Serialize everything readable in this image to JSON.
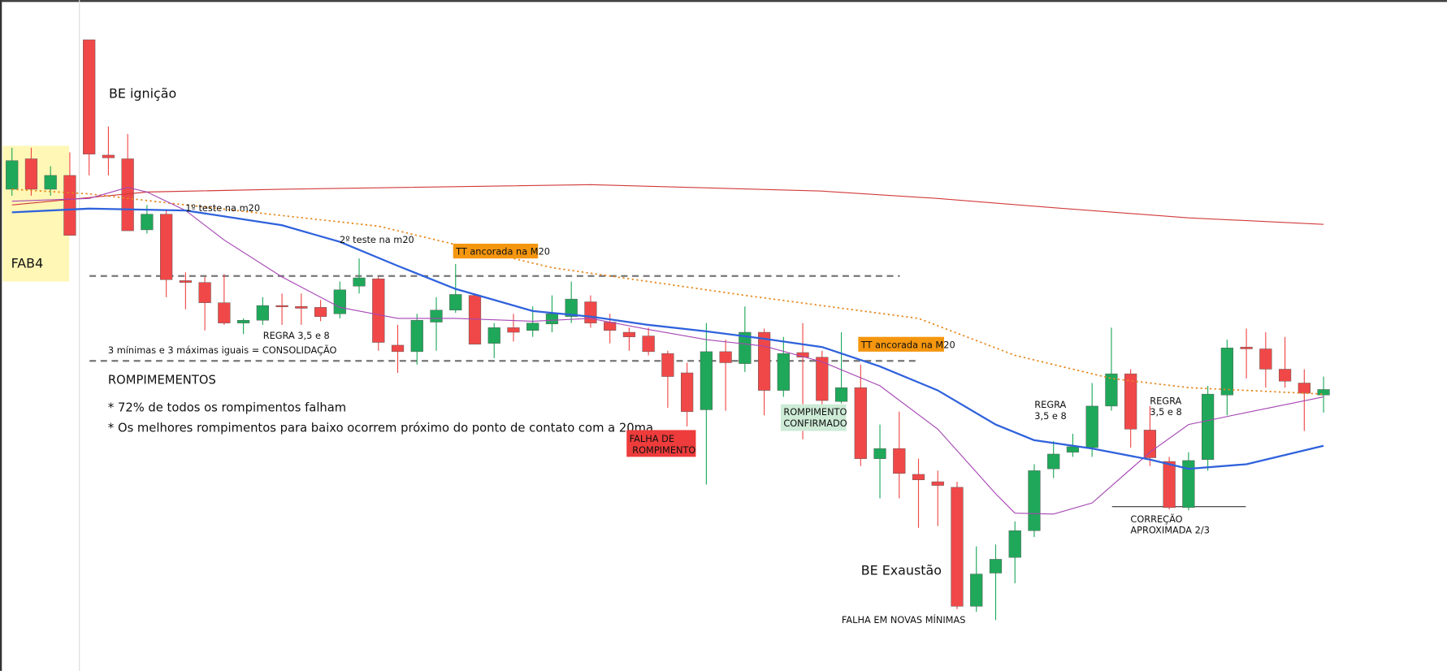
{
  "chart_data": {
    "type": "candlestick",
    "xlim": [
      -0.62,
      74.4
    ],
    "ylim": [
      0,
      727
    ],
    "up_color": "#1fa85a",
    "down_color": "#f04848",
    "open": [
      522,
      555,
      522,
      537,
      684,
      559,
      555,
      478,
      495,
      423,
      421,
      399,
      377,
      380,
      396,
      395,
      394,
      387,
      417,
      425,
      353,
      346,
      378,
      391,
      407,
      355,
      372,
      369,
      376,
      384,
      400,
      378,
      367,
      363,
      344,
      323,
      283,
      346,
      333,
      367,
      304,
      345,
      340,
      292,
      307,
      230,
      241,
      213,
      205,
      199,
      70,
      106,
      123,
      152,
      219,
      237,
      242,
      287,
      322,
      261,
      227,
      177,
      229,
      299,
      351,
      349,
      327,
      312,
      299
    ],
    "high": [
      567,
      567,
      547,
      562,
      684,
      590,
      582,
      505,
      499,
      432,
      427,
      430,
      382,
      405,
      409,
      409,
      402,
      422,
      447,
      427,
      375,
      387,
      405,
      441,
      409,
      377,
      387,
      395,
      407,
      422,
      407,
      387,
      372,
      372,
      347,
      334,
      377,
      359,
      395,
      371,
      362,
      377,
      347,
      367,
      332,
      267,
      281,
      230,
      217,
      205,
      135,
      137,
      162,
      224,
      249,
      257,
      312,
      372,
      327,
      287,
      232,
      237,
      309,
      359,
      371,
      367,
      362,
      327,
      319
    ],
    "low": [
      515,
      515,
      515,
      472,
      537,
      537,
      477,
      474,
      405,
      392,
      369,
      375,
      365,
      375,
      375,
      375,
      379,
      382,
      409,
      347,
      323,
      332,
      347,
      388,
      354,
      339,
      357,
      362,
      367,
      377,
      372,
      355,
      347,
      342,
      285,
      265,
      202,
      282,
      324,
      277,
      297,
      251,
      285,
      290,
      222,
      187,
      187,
      155,
      157,
      67,
      64,
      55,
      95,
      145,
      209,
      232,
      232,
      282,
      242,
      222,
      175,
      174,
      217,
      277,
      317,
      307,
      307,
      260,
      280
    ],
    "close": [
      553,
      522,
      537,
      472,
      560,
      556,
      477,
      495,
      424,
      421,
      399,
      377,
      380,
      396,
      395,
      393,
      384,
      413,
      426,
      356,
      346,
      380,
      391,
      408,
      354,
      372,
      367,
      377,
      387,
      403,
      377,
      369,
      362,
      346,
      319,
      281,
      346,
      334,
      367,
      304,
      344,
      340,
      293,
      307,
      230,
      241,
      214,
      207,
      201,
      70,
      105,
      121,
      152,
      217,
      235,
      243,
      287,
      322,
      262,
      231,
      177,
      228,
      300,
      350,
      349,
      327,
      314,
      301,
      305
    ],
    "lines": [
      {
        "color": "#d23a3a",
        "style": "solid",
        "width": 1,
        "x": [
          0,
          7,
          14,
          30,
          42,
          48,
          54,
          61,
          68
        ],
        "values": [
          505,
          519,
          522,
          527,
          520,
          512,
          502,
          491,
          484
        ]
      },
      {
        "color": "#e6861a",
        "style": "dotted",
        "width": 1.5,
        "x": [
          0,
          4,
          9,
          19,
          28,
          38,
          47,
          52,
          57,
          61,
          68
        ],
        "values": [
          522,
          517,
          505,
          482,
          437,
          407,
          382,
          342,
          317,
          307,
          300
        ]
      },
      {
        "color": "#a646b4",
        "style": "solid",
        "width": 1,
        "x": [
          0,
          4,
          6,
          7,
          9,
          11,
          14,
          17,
          20,
          23,
          27,
          30,
          33,
          36,
          39,
          42,
          45,
          48,
          51,
          52,
          54,
          56,
          59,
          61,
          64,
          68
        ],
        "values": [
          509,
          512,
          524,
          519,
          499,
          467,
          427,
          394,
          382,
          382,
          379,
          382,
          370,
          359,
          352,
          335,
          309,
          262,
          192,
          171,
          170,
          182,
          237,
          267,
          280,
          297
        ]
      },
      {
        "color": "#2f62dc",
        "style": "solid",
        "width": 2,
        "x": [
          0,
          4,
          9,
          14,
          17,
          20,
          23,
          27,
          30,
          33,
          36,
          39,
          42,
          45,
          48,
          51,
          53,
          56,
          59,
          61,
          64,
          68
        ],
        "values": [
          497,
          501,
          499,
          483,
          465,
          439,
          414,
          390,
          384,
          375,
          368,
          360,
          351,
          330,
          304,
          267,
          250,
          241,
          229,
          219,
          224,
          244
        ]
      }
    ],
    "annotations": {
      "fab4": "FAB4",
      "be_ignicao": "BE ignição",
      "teste1": "1º teste na m20",
      "teste2": "2º teste na m20",
      "tt1": "TT ancorada na M20",
      "regra1": "REGRA 3,5 e 8",
      "consolidacao": "3 mínimas e 3 máximas iguais = CONSOLIDAÇÃO",
      "rompimentos": "ROMPIMEMENTOS",
      "nota1": "* 72% de todos os rompimentos falham",
      "nota2": "* Os melhores rompimentos para baixo ocorrem próximo do ponto de contato com a 20ma",
      "falha": [
        "FALHA DE",
        " ROMPIMENTO"
      ],
      "confirmado": [
        "ROMPIMENTO",
        "CONFIRMADO"
      ],
      "tt2": "TT ancorada na M20",
      "be_exaustao": "BE Exaustão",
      "novas_minimas": "FALHA EM NOVAS MÍNIMAS",
      "regra2": [
        "REGRA",
        "3,5 e 8"
      ],
      "regra3": [
        "REGRA",
        "3,5 e 8"
      ],
      "correcao": [
        "CORREÇÃO",
        "APROXIMADA 2/3"
      ]
    }
  }
}
